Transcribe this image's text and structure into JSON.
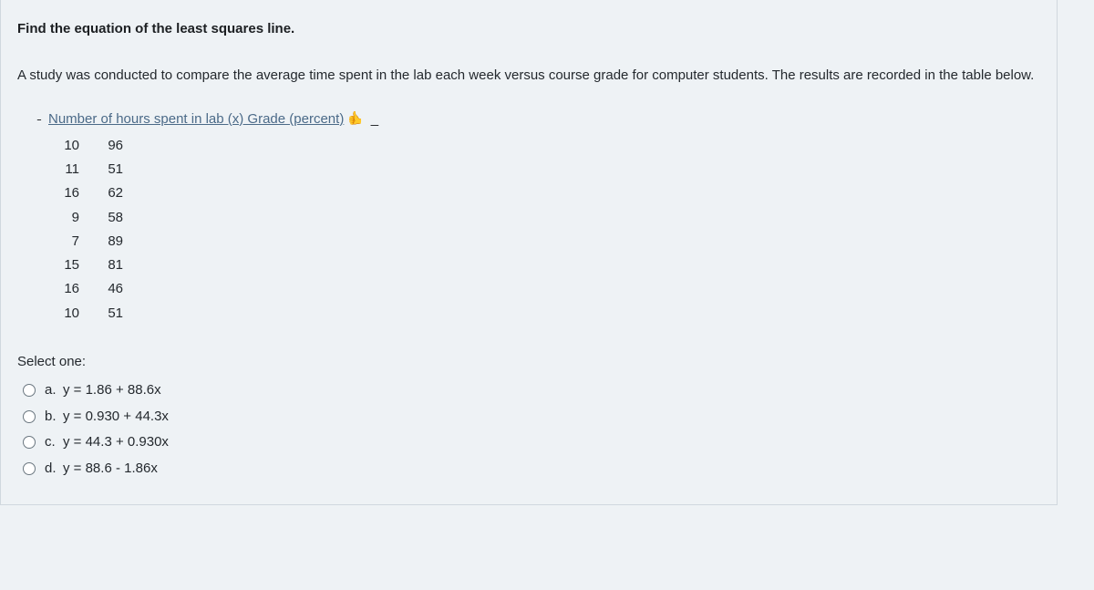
{
  "question": {
    "title": "Find the equation of the least squares line.",
    "description": "A study was conducted to compare the average time spent in the lab each week versus course grade for computer students. The results are recorded in the table below.",
    "table": {
      "header_text": " Number of hours spent in lab (x) Grade (percent)",
      "rows": [
        {
          "x": "10",
          "y": "96"
        },
        {
          "x": "11",
          "y": "51"
        },
        {
          "x": "16",
          "y": "62"
        },
        {
          "x": "9",
          "y": "58"
        },
        {
          "x": "7",
          "y": "89"
        },
        {
          "x": "15",
          "y": "81"
        },
        {
          "x": "16",
          "y": "46"
        },
        {
          "x": "10",
          "y": "51"
        }
      ]
    },
    "select_label": "Select one:",
    "options": [
      {
        "letter": "a.",
        "text": "y = 1.86 + 88.6x"
      },
      {
        "letter": "b.",
        "text": "y = 0.930 + 44.3x"
      },
      {
        "letter": "c.",
        "text": "y = 44.3 + 0.930x"
      },
      {
        "letter": "d.",
        "text": "y = 88.6 - 1.86x"
      }
    ]
  },
  "symbols": {
    "leading_dash": "˗",
    "trailing_dash": "_",
    "thumb": "👍"
  }
}
